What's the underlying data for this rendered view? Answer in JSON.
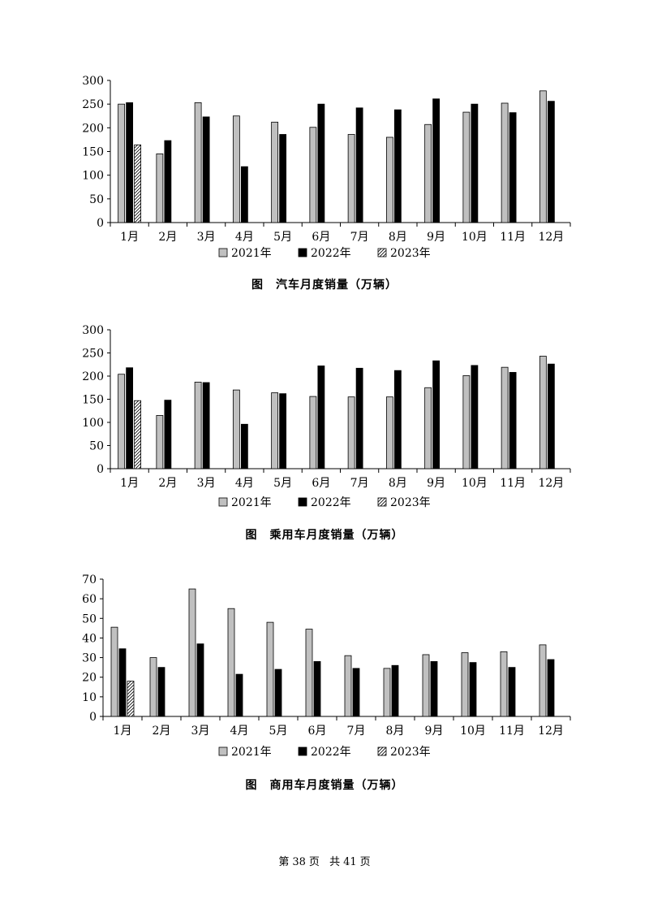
{
  "legend_labels": [
    "2021年",
    "2022年",
    "2023年"
  ],
  "colors": {
    "y2021": "#c0c0c0",
    "y2022": "#000000",
    "y2023": "hatch"
  },
  "chart_data": [
    {
      "type": "bar",
      "title": "图　汽车月度销量（万辆）",
      "categories": [
        "1月",
        "2月",
        "3月",
        "4月",
        "5月",
        "6月",
        "7月",
        "8月",
        "9月",
        "10月",
        "11月",
        "12月"
      ],
      "ylim": [
        0,
        300
      ],
      "yticks": [
        0,
        50,
        100,
        150,
        200,
        250,
        300
      ],
      "legend": "bottom",
      "grid": false,
      "series": [
        {
          "name": "2021年",
          "values": [
            250,
            145,
            253,
            225,
            212,
            201,
            186,
            180,
            207,
            233,
            252,
            278
          ]
        },
        {
          "name": "2022年",
          "values": [
            253,
            173,
            223,
            118,
            186,
            250,
            242,
            238,
            261,
            250,
            232,
            256
          ]
        },
        {
          "name": "2023年",
          "values": [
            164,
            null,
            null,
            null,
            null,
            null,
            null,
            null,
            null,
            null,
            null,
            null
          ]
        }
      ]
    },
    {
      "type": "bar",
      "title": "图　乘用车月度销量（万辆）",
      "categories": [
        "1月",
        "2月",
        "3月",
        "4月",
        "5月",
        "6月",
        "7月",
        "8月",
        "9月",
        "10月",
        "11月",
        "12月"
      ],
      "ylim": [
        0,
        300
      ],
      "yticks": [
        0,
        50,
        100,
        150,
        200,
        250,
        300
      ],
      "legend": "bottom",
      "grid": false,
      "series": [
        {
          "name": "2021年",
          "values": [
            204,
            115,
            187,
            170,
            164,
            156,
            155,
            155,
            175,
            201,
            219,
            243
          ]
        },
        {
          "name": "2022年",
          "values": [
            218,
            148,
            186,
            96,
            162,
            222,
            217,
            212,
            233,
            223,
            208,
            226
          ]
        },
        {
          "name": "2023年",
          "values": [
            147,
            null,
            null,
            null,
            null,
            null,
            null,
            null,
            null,
            null,
            null,
            null
          ]
        }
      ]
    },
    {
      "type": "bar",
      "title": "图　商用车月度销量（万辆）",
      "categories": [
        "1月",
        "2月",
        "3月",
        "4月",
        "5月",
        "6月",
        "7月",
        "8月",
        "9月",
        "10月",
        "11月",
        "12月"
      ],
      "ylim": [
        0,
        70
      ],
      "yticks": [
        0,
        10,
        20,
        30,
        40,
        50,
        60,
        70
      ],
      "legend": "bottom",
      "grid": false,
      "series": [
        {
          "name": "2021年",
          "values": [
            45.5,
            30,
            65,
            55,
            48,
            44.5,
            31,
            24.5,
            31.5,
            32.5,
            33,
            36.5
          ]
        },
        {
          "name": "2022年",
          "values": [
            34.5,
            25,
            37,
            21.5,
            24,
            28,
            24.5,
            26,
            28,
            27.5,
            25,
            29
          ]
        },
        {
          "name": "2023年",
          "values": [
            18,
            null,
            null,
            null,
            null,
            null,
            null,
            null,
            null,
            null,
            null,
            null
          ]
        }
      ]
    }
  ],
  "footer": {
    "page_label_a": "第",
    "page_current": "38",
    "page_label_b": "页",
    "page_label_c": "共",
    "page_total": "41",
    "page_label_d": "页"
  }
}
